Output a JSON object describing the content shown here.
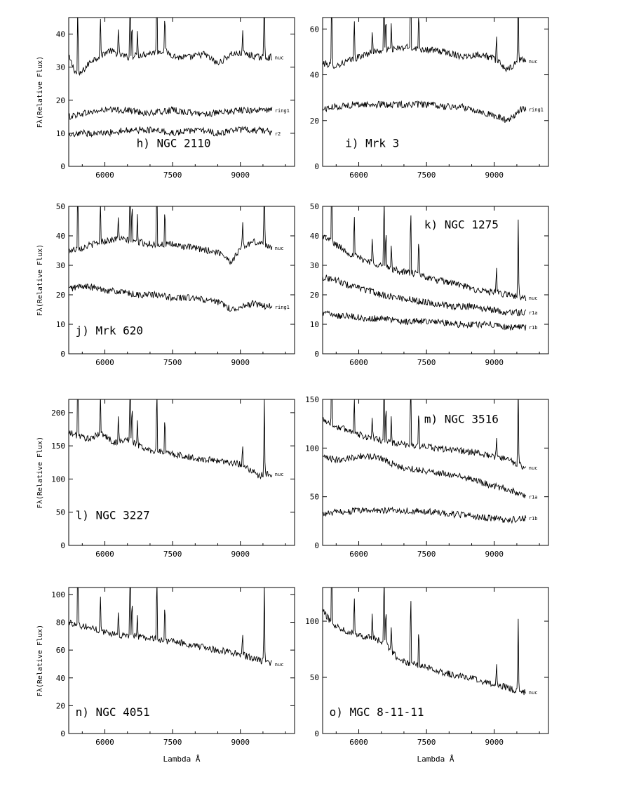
{
  "figure": {
    "x_axis_label": "Lambda Å",
    "y_axis_label": "Fλ(Relative Flux)"
  },
  "chart_data": [
    {
      "type": "line",
      "panel": "h) NGC 2110",
      "xlabel": "",
      "ylabel": "Fλ(Relative Flux)",
      "xlim": [
        5200,
        10200
      ],
      "ylim": [
        0,
        45
      ],
      "xticks": [
        6000,
        7500,
        9000
      ],
      "xtick_labels": [
        "6000",
        "7500",
        "9000"
      ],
      "yticks": [
        0,
        10,
        20,
        30,
        40
      ],
      "ytick_labels": [
        "0",
        "10",
        "20",
        "30",
        "40"
      ],
      "series": [
        {
          "name": "nuc",
          "x": [
            5200,
            5400,
            5700,
            6100,
            6500,
            6900,
            7300,
            7600,
            7900,
            8200,
            8500,
            8800,
            9100,
            9400,
            9700
          ],
          "y": [
            33,
            27,
            32,
            35,
            33,
            34,
            35,
            33,
            33,
            34,
            31,
            34,
            34,
            33,
            33
          ]
        },
        {
          "name": "ring1",
          "x": [
            5200,
            5500,
            6000,
            6500,
            7000,
            7500,
            8000,
            8500,
            9000,
            9500,
            9700
          ],
          "y": [
            15,
            16,
            17,
            17,
            16,
            17,
            16,
            16,
            17,
            17,
            17
          ]
        },
        {
          "name": "r2",
          "x": [
            5200,
            5500,
            6000,
            6500,
            7000,
            7500,
            8000,
            8500,
            9000,
            9500,
            9700
          ],
          "y": [
            9,
            10,
            10,
            11,
            11,
            10,
            11,
            10,
            11,
            11,
            10
          ]
        }
      ]
    },
    {
      "type": "line",
      "panel": "i) Mrk 3",
      "xlabel": "",
      "ylabel": "",
      "xlim": [
        5200,
        10200
      ],
      "ylim": [
        0,
        65
      ],
      "xticks": [
        6000,
        7500,
        9000
      ],
      "xtick_labels": [
        "6000",
        "7500",
        "9000"
      ],
      "yticks": [
        0,
        20,
        40,
        60
      ],
      "ytick_labels": [
        "0",
        "20",
        "40",
        "60"
      ],
      "series": [
        {
          "name": "nuc",
          "x": [
            5200,
            5500,
            5900,
            6300,
            6700,
            7100,
            7500,
            7900,
            8300,
            8700,
            9000,
            9300,
            9600,
            9700
          ],
          "y": [
            45,
            44,
            47,
            50,
            51,
            52,
            51,
            50,
            48,
            49,
            47,
            42,
            47,
            46
          ]
        },
        {
          "name": "ring1",
          "x": [
            5200,
            5500,
            5900,
            6300,
            6700,
            7100,
            7500,
            7900,
            8300,
            8700,
            9000,
            9300,
            9600,
            9700
          ],
          "y": [
            25,
            26,
            27,
            27,
            27,
            27,
            27,
            26,
            26,
            24,
            22,
            20,
            25,
            25
          ]
        }
      ]
    },
    {
      "type": "line",
      "panel": "j) Mrk 620",
      "xlabel": "",
      "ylabel": "Fλ(Relative Flux)",
      "xlim": [
        5200,
        10200
      ],
      "ylim": [
        0,
        50
      ],
      "xticks": [
        6000,
        7500,
        9000
      ],
      "xtick_labels": [
        "6000",
        "7500",
        "9000"
      ],
      "yticks": [
        0,
        10,
        20,
        30,
        40,
        50
      ],
      "ytick_labels": [
        "0",
        "10",
        "20",
        "30",
        "40",
        "50"
      ],
      "series": [
        {
          "name": "nuc",
          "x": [
            5200,
            5500,
            5900,
            6300,
            6700,
            7100,
            7500,
            7900,
            8300,
            8600,
            8800,
            9000,
            9300,
            9600,
            9700
          ],
          "y": [
            35,
            36,
            38,
            39,
            38,
            37,
            37,
            36,
            35,
            34,
            31,
            36,
            38,
            37,
            36
          ]
        },
        {
          "name": "ring1",
          "x": [
            5200,
            5500,
            5900,
            6300,
            6700,
            7100,
            7500,
            7900,
            8300,
            8600,
            8800,
            9000,
            9300,
            9600,
            9700
          ],
          "y": [
            22,
            23,
            22,
            21,
            20,
            20,
            19,
            19,
            18,
            17,
            15,
            16,
            17,
            16,
            16
          ]
        }
      ]
    },
    {
      "type": "line",
      "panel": "k) NGC 1275",
      "xlabel": "",
      "ylabel": "",
      "xlim": [
        5200,
        10200
      ],
      "ylim": [
        0,
        50
      ],
      "xticks": [
        6000,
        7500,
        9000
      ],
      "xtick_labels": [
        "6000",
        "7500",
        "9000"
      ],
      "yticks": [
        0,
        10,
        20,
        30,
        40,
        50
      ],
      "ytick_labels": [
        "0",
        "10",
        "20",
        "30",
        "40",
        "50"
      ],
      "series": [
        {
          "name": "nuc",
          "x": [
            5200,
            5500,
            5800,
            6100,
            6500,
            6900,
            7300,
            7700,
            8100,
            8500,
            8900,
            9300,
            9700
          ],
          "y": [
            40,
            37,
            34,
            32,
            30,
            28,
            27,
            25,
            24,
            22,
            21,
            20,
            19
          ]
        },
        {
          "name": "r1a",
          "x": [
            5200,
            5500,
            5800,
            6100,
            6500,
            6900,
            7300,
            7700,
            8100,
            8500,
            8900,
            9300,
            9700
          ],
          "y": [
            26,
            25,
            23,
            22,
            20,
            19,
            18,
            17,
            16,
            16,
            15,
            14,
            14
          ]
        },
        {
          "name": "r1b",
          "x": [
            5200,
            5500,
            5800,
            6100,
            6500,
            6900,
            7300,
            7700,
            8100,
            8500,
            8900,
            9300,
            9700
          ],
          "y": [
            14,
            13,
            13,
            12,
            12,
            11,
            11,
            11,
            10,
            10,
            10,
            9,
            9
          ]
        }
      ]
    },
    {
      "type": "line",
      "panel": "l) NGC 3227",
      "xlabel": "",
      "ylabel": "Fλ(Relative Flux)",
      "xlim": [
        5200,
        10200
      ],
      "ylim": [
        0,
        220
      ],
      "xticks": [
        6000,
        7500,
        9000
      ],
      "xtick_labels": [
        "6000",
        "7500",
        "9000"
      ],
      "yticks": [
        0,
        50,
        100,
        150,
        200
      ],
      "ytick_labels": [
        "0",
        "50",
        "100",
        "150",
        "200"
      ],
      "series": [
        {
          "name": "nuc",
          "x": [
            5200,
            5400,
            5700,
            5900,
            6200,
            6500,
            6900,
            7300,
            7700,
            8100,
            8500,
            8800,
            9100,
            9400,
            9700
          ],
          "y": [
            170,
            165,
            160,
            170,
            155,
            160,
            145,
            140,
            135,
            130,
            128,
            125,
            120,
            105,
            108
          ]
        }
      ]
    },
    {
      "type": "line",
      "panel": "m) NGC 3516",
      "xlabel": "",
      "ylabel": "",
      "xlim": [
        5200,
        10200
      ],
      "ylim": [
        0,
        150
      ],
      "xticks": [
        6000,
        7500,
        9000
      ],
      "xtick_labels": [
        "6000",
        "7500",
        "9000"
      ],
      "yticks": [
        0,
        50,
        100,
        150
      ],
      "ytick_labels": [
        "0",
        "50",
        "100",
        "150"
      ],
      "series": [
        {
          "name": "nuc",
          "x": [
            5200,
            5500,
            5800,
            6100,
            6500,
            6900,
            7300,
            7700,
            8100,
            8500,
            8900,
            9300,
            9700
          ],
          "y": [
            130,
            122,
            118,
            112,
            108,
            104,
            102,
            100,
            98,
            96,
            92,
            88,
            80
          ]
        },
        {
          "name": "r1a",
          "x": [
            5200,
            5500,
            5800,
            6100,
            6500,
            6900,
            7300,
            7700,
            8100,
            8500,
            8900,
            9300,
            9700
          ],
          "y": [
            90,
            88,
            90,
            92,
            90,
            80,
            78,
            75,
            72,
            68,
            62,
            58,
            50
          ]
        },
        {
          "name": "r1b",
          "x": [
            5200,
            5500,
            5800,
            6100,
            6500,
            6900,
            7300,
            7700,
            8100,
            8500,
            8900,
            9300,
            9700
          ],
          "y": [
            32,
            34,
            35,
            36,
            36,
            36,
            35,
            34,
            32,
            30,
            28,
            26,
            28
          ]
        }
      ]
    },
    {
      "type": "line",
      "panel": "n) NGC 4051",
      "xlabel": "Lambda Å",
      "ylabel": "Fλ(Relative Flux)",
      "xlim": [
        5200,
        10200
      ],
      "ylim": [
        0,
        105
      ],
      "xticks": [
        6000,
        7500,
        9000
      ],
      "xtick_labels": [
        "6000",
        "7500",
        "9000"
      ],
      "yticks": [
        0,
        20,
        40,
        60,
        80,
        100
      ],
      "ytick_labels": [
        "0",
        "20",
        "40",
        "60",
        "80",
        "100"
      ],
      "series": [
        {
          "name": "nuc",
          "x": [
            5200,
            5400,
            5700,
            6000,
            6300,
            6700,
            7100,
            7500,
            7900,
            8300,
            8700,
            9000,
            9300,
            9500,
            9700
          ],
          "y": [
            80,
            78,
            76,
            73,
            71,
            70,
            68,
            66,
            64,
            61,
            59,
            57,
            54,
            52,
            50
          ]
        }
      ]
    },
    {
      "type": "line",
      "panel": "o) MGC 8-11-11",
      "xlabel": "Lambda Å",
      "ylabel": "",
      "xlim": [
        5200,
        10200
      ],
      "ylim": [
        0,
        130
      ],
      "xticks": [
        6000,
        7500,
        9000
      ],
      "xtick_labels": [
        "6000",
        "7500",
        "9000"
      ],
      "yticks": [
        0,
        50,
        100
      ],
      "ytick_labels": [
        "0",
        "50",
        "100"
      ],
      "series": [
        {
          "name": "nuc",
          "x": [
            5200,
            5400,
            5700,
            6000,
            6300,
            6600,
            6900,
            7200,
            7600,
            8000,
            8400,
            8800,
            9200,
            9500,
            9700
          ],
          "y": [
            110,
            98,
            92,
            88,
            85,
            80,
            65,
            62,
            58,
            53,
            50,
            46,
            42,
            38,
            37
          ]
        }
      ]
    }
  ]
}
